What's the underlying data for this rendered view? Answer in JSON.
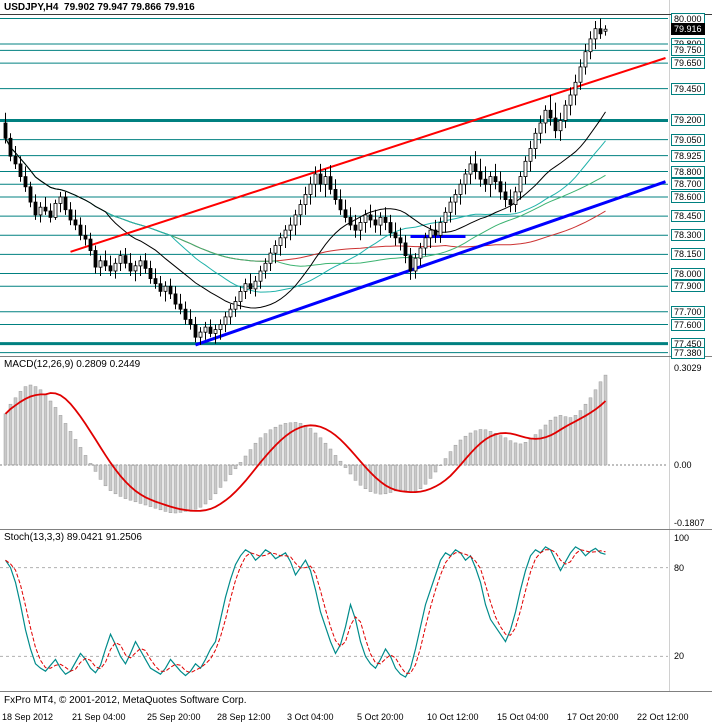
{
  "chart_data": [
    {
      "type": "candlestick",
      "symbol": "USDJPY",
      "timeframe": "H4",
      "title": "USDJPY,H4  79.902 79.947 79.866 79.916",
      "open": 79.902,
      "high": 79.947,
      "low": 79.866,
      "close": 79.916,
      "current_price": 79.916,
      "current_price_label": "79.916",
      "ylim": [
        77.35,
        80.05
      ],
      "levels": [
        {
          "label": "80.000",
          "price": 80.0,
          "weight": 1
        },
        {
          "label": "79.800",
          "price": 79.8,
          "weight": 1
        },
        {
          "label": "79.750",
          "price": 79.75,
          "weight": 1
        },
        {
          "label": "79.650",
          "price": 79.65,
          "weight": 1
        },
        {
          "label": "79.450",
          "price": 79.45,
          "weight": 1
        },
        {
          "label": "79.200",
          "price": 79.2,
          "weight": 3
        },
        {
          "label": "79.050",
          "price": 79.05,
          "weight": 1
        },
        {
          "label": "78.925",
          "price": 78.925,
          "weight": 1
        },
        {
          "label": "78.800",
          "price": 78.8,
          "weight": 1
        },
        {
          "label": "78.700",
          "price": 78.7,
          "weight": 1
        },
        {
          "label": "78.600",
          "price": 78.6,
          "weight": 1
        },
        {
          "label": "78.450",
          "price": 78.45,
          "weight": 1
        },
        {
          "label": "78.300",
          "price": 78.3,
          "weight": 1
        },
        {
          "label": "78.150",
          "price": 78.15,
          "weight": 1
        },
        {
          "label": "78.000",
          "price": 78.0,
          "weight": 1
        },
        {
          "label": "77.900",
          "price": 77.9,
          "weight": 1
        },
        {
          "label": "77.700",
          "price": 77.7,
          "weight": 1
        },
        {
          "label": "77.600",
          "price": 77.6,
          "weight": 1
        },
        {
          "label": "77.450",
          "price": 77.45,
          "weight": 3
        },
        {
          "label": "77.380",
          "price": 77.38,
          "weight": 1
        }
      ],
      "trendlines": [
        {
          "name": "red-ascending-trendline",
          "color": "#ff0000",
          "width": 2,
          "i1": 13,
          "p1": 78.17,
          "i2": 132,
          "p2": 79.69
        },
        {
          "name": "blue-ascending-trendline",
          "color": "#0000ff",
          "width": 3,
          "i1": 38,
          "p1": 77.44,
          "i2": 132,
          "p2": 78.72
        },
        {
          "name": "blue-horizontal-segment",
          "color": "#0000ff",
          "width": 3,
          "i1": 81,
          "p1": 78.29,
          "i2": 92,
          "p2": 78.29
        }
      ],
      "x_ticks": [
        {
          "label": "18 Sep 2012",
          "i": 0
        },
        {
          "label": "21 Sep 04:00",
          "i": 14
        },
        {
          "label": "25 Sep 20:00",
          "i": 29
        },
        {
          "label": "28 Sep 12:00",
          "i": 43
        },
        {
          "label": "3 Oct 04:00",
          "i": 57
        },
        {
          "label": "5 Oct 20:00",
          "i": 71
        },
        {
          "label": "10 Oct 12:00",
          "i": 85
        },
        {
          "label": "15 Oct 04:00",
          "i": 99
        },
        {
          "label": "17 Oct 20:00",
          "i": 113
        },
        {
          "label": "22 Oct 12:00",
          "i": 127
        }
      ],
      "ohlc": [
        [
          79.18,
          79.26,
          79.02,
          79.06
        ],
        [
          79.06,
          79.1,
          78.88,
          78.92
        ],
        [
          78.92,
          79.0,
          78.82,
          78.86
        ],
        [
          78.86,
          78.92,
          78.72,
          78.76
        ],
        [
          78.76,
          78.84,
          78.64,
          78.68
        ],
        [
          78.68,
          78.72,
          78.52,
          78.56
        ],
        [
          78.56,
          78.62,
          78.42,
          78.46
        ],
        [
          78.46,
          78.56,
          78.4,
          78.52
        ],
        [
          78.52,
          78.6,
          78.46,
          78.49
        ],
        [
          78.49,
          78.55,
          78.4,
          78.44
        ],
        [
          78.44,
          78.58,
          78.42,
          78.55
        ],
        [
          78.55,
          78.64,
          78.48,
          78.6
        ],
        [
          78.6,
          78.64,
          78.46,
          78.5
        ],
        [
          78.5,
          78.56,
          78.38,
          78.42
        ],
        [
          78.42,
          78.5,
          78.34,
          78.38
        ],
        [
          78.38,
          78.44,
          78.26,
          78.3
        ],
        [
          78.3,
          78.38,
          78.22,
          78.27
        ],
        [
          78.27,
          78.32,
          78.14,
          78.18
        ],
        [
          78.18,
          78.22,
          78.0,
          78.05
        ],
        [
          78.05,
          78.14,
          77.98,
          78.1
        ],
        [
          78.1,
          78.18,
          78.02,
          78.06
        ],
        [
          78.06,
          78.14,
          77.98,
          78.02
        ],
        [
          78.02,
          78.12,
          77.96,
          78.08
        ],
        [
          78.08,
          78.18,
          78.02,
          78.14
        ],
        [
          78.14,
          78.2,
          78.04,
          78.08
        ],
        [
          78.08,
          78.16,
          77.98,
          78.02
        ],
        [
          78.02,
          78.1,
          77.94,
          78.06
        ],
        [
          78.06,
          78.14,
          77.98,
          78.1
        ],
        [
          78.1,
          78.16,
          78.0,
          78.04
        ],
        [
          78.04,
          78.1,
          77.92,
          77.96
        ],
        [
          77.96,
          78.04,
          77.88,
          77.92
        ],
        [
          77.92,
          77.98,
          77.82,
          77.86
        ],
        [
          77.86,
          77.94,
          77.78,
          77.9
        ],
        [
          77.9,
          77.96,
          77.8,
          77.84
        ],
        [
          77.84,
          77.9,
          77.72,
          77.76
        ],
        [
          77.76,
          77.84,
          77.68,
          77.72
        ],
        [
          77.72,
          77.78,
          77.6,
          77.64
        ],
        [
          77.64,
          77.72,
          77.56,
          77.6
        ],
        [
          77.6,
          77.66,
          77.46,
          77.5
        ],
        [
          77.5,
          77.58,
          77.44,
          77.54
        ],
        [
          77.54,
          77.62,
          77.48,
          77.58
        ],
        [
          77.58,
          77.64,
          77.5,
          77.53
        ],
        [
          77.53,
          77.6,
          77.45,
          77.56
        ],
        [
          77.56,
          77.64,
          77.48,
          77.6
        ],
        [
          77.6,
          77.7,
          77.54,
          77.66
        ],
        [
          77.66,
          77.76,
          77.6,
          77.72
        ],
        [
          77.72,
          77.82,
          77.66,
          77.78
        ],
        [
          77.78,
          77.9,
          77.72,
          77.86
        ],
        [
          77.86,
          77.96,
          77.8,
          77.92
        ],
        [
          77.92,
          78.0,
          77.84,
          77.88
        ],
        [
          77.88,
          77.98,
          77.82,
          77.94
        ],
        [
          77.94,
          78.06,
          77.88,
          78.02
        ],
        [
          78.02,
          78.12,
          77.96,
          78.08
        ],
        [
          78.08,
          78.2,
          78.02,
          78.16
        ],
        [
          78.16,
          78.26,
          78.08,
          78.22
        ],
        [
          78.22,
          78.32,
          78.14,
          78.28
        ],
        [
          78.28,
          78.38,
          78.2,
          78.34
        ],
        [
          78.34,
          78.44,
          78.26,
          78.38
        ],
        [
          78.38,
          78.5,
          78.3,
          78.46
        ],
        [
          78.46,
          78.58,
          78.38,
          78.54
        ],
        [
          78.54,
          78.68,
          78.46,
          78.62
        ],
        [
          78.62,
          78.76,
          78.54,
          78.7
        ],
        [
          78.7,
          78.84,
          78.6,
          78.78
        ],
        [
          78.78,
          78.86,
          78.64,
          78.7
        ],
        [
          78.7,
          78.82,
          78.6,
          78.76
        ],
        [
          78.76,
          78.85,
          78.62,
          78.66
        ],
        [
          78.66,
          78.74,
          78.54,
          78.58
        ],
        [
          78.58,
          78.66,
          78.46,
          78.5
        ],
        [
          78.5,
          78.58,
          78.4,
          78.44
        ],
        [
          78.44,
          78.52,
          78.34,
          78.38
        ],
        [
          78.38,
          78.46,
          78.28,
          78.34
        ],
        [
          78.34,
          78.44,
          78.26,
          78.4
        ],
        [
          78.4,
          78.5,
          78.32,
          78.46
        ],
        [
          78.46,
          78.54,
          78.36,
          78.42
        ],
        [
          78.42,
          78.5,
          78.32,
          78.38
        ],
        [
          78.38,
          78.48,
          78.3,
          78.44
        ],
        [
          78.44,
          78.52,
          78.34,
          78.4
        ],
        [
          78.4,
          78.46,
          78.28,
          78.32
        ],
        [
          78.32,
          78.4,
          78.22,
          78.28
        ],
        [
          78.28,
          78.36,
          78.18,
          78.24
        ],
        [
          78.24,
          78.3,
          78.08,
          78.14
        ],
        [
          78.14,
          78.2,
          77.95,
          78.02
        ],
        [
          78.02,
          78.16,
          77.96,
          78.12
        ],
        [
          78.12,
          78.24,
          78.06,
          78.2
        ],
        [
          78.2,
          78.32,
          78.14,
          78.28
        ],
        [
          78.28,
          78.38,
          78.2,
          78.34
        ],
        [
          78.34,
          78.42,
          78.24,
          78.3
        ],
        [
          78.3,
          78.44,
          78.24,
          78.4
        ],
        [
          78.4,
          78.52,
          78.32,
          78.48
        ],
        [
          78.48,
          78.6,
          78.4,
          78.56
        ],
        [
          78.56,
          78.66,
          78.46,
          78.62
        ],
        [
          78.62,
          78.74,
          78.54,
          78.7
        ],
        [
          78.7,
          78.82,
          78.62,
          78.78
        ],
        [
          78.78,
          78.92,
          78.7,
          78.86
        ],
        [
          78.86,
          78.96,
          78.74,
          78.8
        ],
        [
          78.8,
          78.9,
          78.68,
          78.74
        ],
        [
          78.74,
          78.84,
          78.64,
          78.7
        ],
        [
          78.7,
          78.8,
          78.6,
          78.76
        ],
        [
          78.76,
          78.86,
          78.66,
          78.72
        ],
        [
          78.72,
          78.8,
          78.58,
          78.64
        ],
        [
          78.64,
          78.72,
          78.52,
          78.58
        ],
        [
          78.58,
          78.66,
          78.48,
          78.54
        ],
        [
          78.54,
          78.68,
          78.48,
          78.64
        ],
        [
          78.64,
          78.8,
          78.58,
          78.76
        ],
        [
          78.76,
          78.92,
          78.7,
          78.88
        ],
        [
          78.88,
          79.04,
          78.8,
          78.98
        ],
        [
          78.98,
          79.14,
          78.9,
          79.1
        ],
        [
          79.1,
          79.24,
          79.02,
          79.18
        ],
        [
          79.18,
          79.32,
          79.1,
          79.28
        ],
        [
          79.28,
          79.4,
          79.16,
          79.22
        ],
        [
          79.22,
          79.34,
          79.06,
          79.12
        ],
        [
          79.12,
          79.26,
          79.04,
          79.2
        ],
        [
          79.2,
          79.36,
          79.14,
          79.32
        ],
        [
          79.32,
          79.46,
          79.24,
          79.4
        ],
        [
          79.4,
          79.56,
          79.32,
          79.5
        ],
        [
          79.5,
          79.68,
          79.44,
          79.62
        ],
        [
          79.62,
          79.8,
          79.56,
          79.74
        ],
        [
          79.74,
          79.9,
          79.68,
          79.84
        ],
        [
          79.84,
          79.98,
          79.76,
          79.92
        ],
        [
          79.92,
          80.0,
          79.84,
          79.88
        ],
        [
          79.9,
          79.947,
          79.866,
          79.916
        ]
      ]
    },
    {
      "type": "bar",
      "name": "MACD(12,26,9)",
      "title": "MACD(12,26,9) 0.2809 0.2449",
      "macd_value": 0.2809,
      "signal_value": 0.2449,
      "ylim": [
        -0.19,
        0.31
      ],
      "y_ticks": [
        {
          "label": "0.3029",
          "value": 0.3029
        },
        {
          "label": "0.00",
          "value": 0
        },
        {
          "label": "-0.1807",
          "value": -0.1807
        }
      ],
      "values": [
        0.16,
        0.19,
        0.21,
        0.23,
        0.245,
        0.25,
        0.245,
        0.235,
        0.22,
        0.2,
        0.18,
        0.155,
        0.13,
        0.105,
        0.08,
        0.055,
        0.03,
        0.005,
        -0.02,
        -0.045,
        -0.065,
        -0.08,
        -0.09,
        -0.098,
        -0.105,
        -0.11,
        -0.115,
        -0.12,
        -0.125,
        -0.13,
        -0.135,
        -0.14,
        -0.145,
        -0.149,
        -0.15,
        -0.148,
        -0.145,
        -0.142,
        -0.138,
        -0.132,
        -0.122,
        -0.108,
        -0.09,
        -0.07,
        -0.05,
        -0.03,
        -0.012,
        0.008,
        0.028,
        0.048,
        0.068,
        0.085,
        0.098,
        0.11,
        0.118,
        0.125,
        0.13,
        0.132,
        0.133,
        0.13,
        0.124,
        0.114,
        0.1,
        0.085,
        0.068,
        0.05,
        0.03,
        0.012,
        -0.008,
        -0.028,
        -0.048,
        -0.063,
        -0.074,
        -0.083,
        -0.088,
        -0.091,
        -0.09,
        -0.086,
        -0.081,
        -0.078,
        -0.08,
        -0.085,
        -0.082,
        -0.074,
        -0.06,
        -0.042,
        -0.022,
        0.0,
        0.02,
        0.042,
        0.062,
        0.078,
        0.09,
        0.1,
        0.107,
        0.111,
        0.11,
        0.105,
        0.099,
        0.092,
        0.085,
        0.076,
        0.069,
        0.066,
        0.071,
        0.081,
        0.095,
        0.11,
        0.125,
        0.14,
        0.15,
        0.155,
        0.151,
        0.148,
        0.155,
        0.17,
        0.19,
        0.21,
        0.235,
        0.26,
        0.2809
      ]
    },
    {
      "type": "line",
      "name": "Stoch(13,3,3)",
      "title": "Stoch(13,3,3) 89.0421 91.2506",
      "main_value": 89.0421,
      "signal_value": 91.2506,
      "ylim": [
        0,
        100
      ],
      "levels": [
        80,
        20
      ],
      "y_ticks": [
        {
          "label": "100",
          "value": 100
        },
        {
          "label": "80",
          "value": 80
        },
        {
          "label": "20",
          "value": 20
        }
      ],
      "values": [
        85,
        80,
        70,
        55,
        38,
        25,
        15,
        12,
        10,
        14,
        18,
        12,
        8,
        10,
        16,
        22,
        18,
        12,
        9,
        14,
        25,
        35,
        28,
        20,
        15,
        22,
        30,
        24,
        18,
        12,
        10,
        8,
        12,
        18,
        14,
        10,
        7,
        10,
        15,
        12,
        18,
        25,
        30,
        45,
        60,
        72,
        82,
        88,
        92,
        90,
        85,
        88,
        92,
        90,
        86,
        88,
        90,
        84,
        75,
        80,
        85,
        78,
        65,
        50,
        40,
        30,
        22,
        28,
        40,
        55,
        45,
        30,
        20,
        15,
        12,
        18,
        25,
        20,
        12,
        8,
        6,
        12,
        25,
        40,
        55,
        65,
        75,
        85,
        90,
        88,
        92,
        90,
        85,
        88,
        80,
        70,
        55,
        45,
        40,
        35,
        30,
        38,
        50,
        65,
        78,
        88,
        92,
        90,
        94,
        92,
        85,
        78,
        84,
        90,
        94,
        92,
        88,
        91,
        93,
        90,
        89
      ]
    }
  ],
  "colors": {
    "level": "#008080",
    "candle_up": "#ffffff",
    "candle_down": "#000000",
    "macd_bar": "#c9c9c9",
    "macd_bar_border": "#9a9a9a",
    "macd_signal": "#e00000",
    "stoch_main": "#008b8b",
    "stoch_signal": "#e00000",
    "ma_black": "#000000",
    "ma_teal": "#20b2aa",
    "ma_green": "#3cb371",
    "ma_red": "#cc3333"
  },
  "footer": {
    "copyright": "FxPro MT4, © 2001-2012, MetaQuotes Software Corp."
  }
}
